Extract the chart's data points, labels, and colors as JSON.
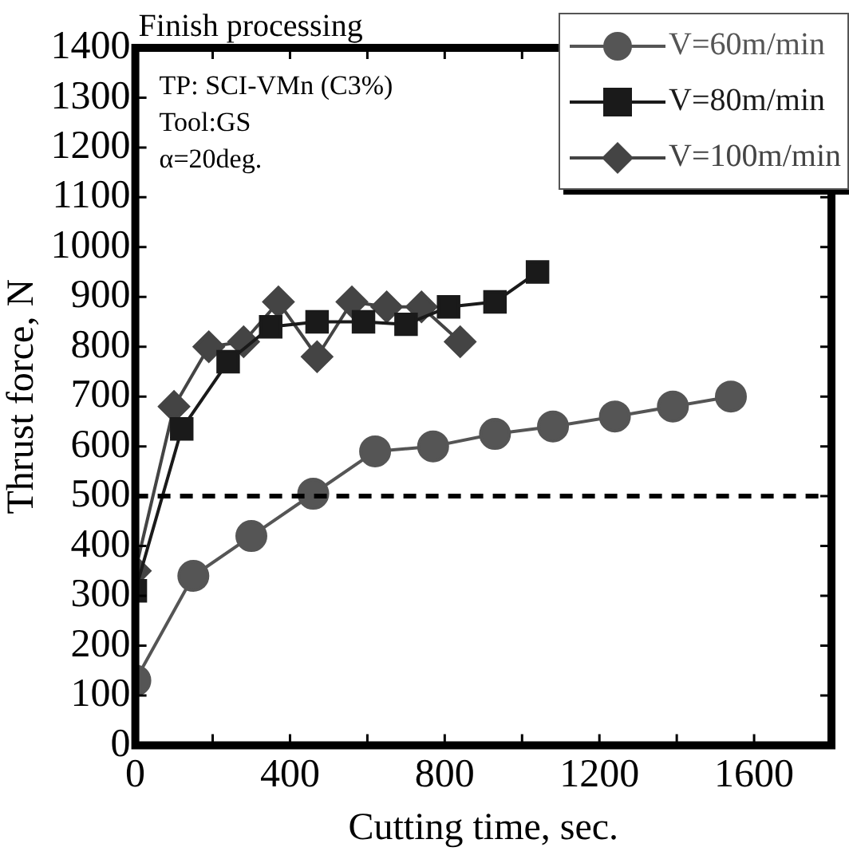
{
  "chart_data": {
    "type": "line",
    "title": "Finish processing",
    "xlabel": "Cutting time, sec.",
    "ylabel": "Thrust force, N",
    "xlim": [
      0,
      1800
    ],
    "xticks": [
      0,
      {
        "value": 200,
        "label": null
      },
      400,
      {
        "value": 600,
        "label": null
      },
      800,
      {
        "value": 1000,
        "label": null
      },
      1200,
      {
        "value": 1400,
        "label": null
      },
      1600,
      {
        "value": 1800,
        "label": null
      }
    ],
    "ylim": [
      0,
      1400
    ],
    "yticks": [
      0,
      100,
      200,
      300,
      400,
      500,
      600,
      700,
      800,
      900,
      1000,
      1100,
      1200,
      1300,
      1400
    ],
    "grid": false,
    "legend": "top right",
    "line_style": "solid",
    "annotations": [
      "TP: SCI-VMn (C3%)",
      "Tool:GS",
      "α=20deg."
    ],
    "ref_lines": [
      {
        "axis": "y",
        "value": 500,
        "color": "#000000",
        "line_style": "dashed"
      }
    ],
    "series": [
      {
        "name": "V=60m/min",
        "color": "#555555",
        "marker": "circle",
        "x": [
          0,
          150,
          300,
          460,
          620,
          770,
          930,
          1080,
          1240,
          1390,
          1540
        ],
        "values": [
          130,
          340,
          420,
          505,
          590,
          600,
          625,
          640,
          660,
          680,
          700
        ]
      },
      {
        "name": "V=80m/min",
        "color": "#1a1a1a",
        "marker": "square",
        "x": [
          0,
          120,
          240,
          350,
          470,
          590,
          700,
          810,
          930,
          1040
        ],
        "values": [
          310,
          635,
          770,
          840,
          850,
          850,
          845,
          880,
          890,
          950
        ]
      },
      {
        "name": "V=100m/min",
        "color": "#444444",
        "marker": "diamond",
        "x": [
          0,
          100,
          190,
          280,
          370,
          470,
          560,
          650,
          740,
          840
        ],
        "values": [
          350,
          680,
          800,
          810,
          890,
          780,
          890,
          880,
          880,
          810
        ]
      }
    ]
  }
}
